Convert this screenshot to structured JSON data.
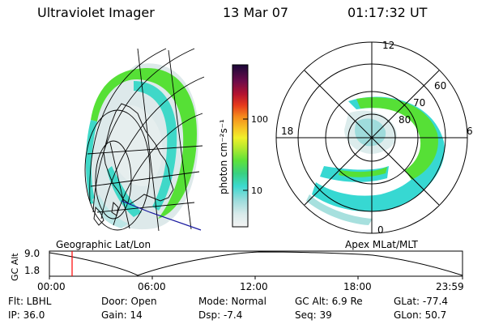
{
  "header": {
    "instrument": "Ultraviolet Imager",
    "date": "13 Mar 07",
    "time": "01:17:32 UT"
  },
  "colorbar": {
    "unit": "photon cm⁻²s⁻¹",
    "ticks": [
      "100",
      "10"
    ]
  },
  "polar": {
    "mlt_labels": [
      "12",
      "18",
      "6",
      "0"
    ],
    "lat_labels": [
      "60",
      "70",
      "80"
    ]
  },
  "panel_titles": {
    "left": "Geographic Lat/Lon",
    "right": "Apex MLat/MLT"
  },
  "timeline": {
    "ylabel": "GC Alt",
    "y_top": "9.0",
    "y_bottom": "1.8",
    "x_ticks": [
      "00:00",
      "06:00",
      "12:00",
      "18:00",
      "23:59"
    ]
  },
  "status": {
    "flt": "Flt: LBHL",
    "ip": "IP: 36.0",
    "door": "Door: Open",
    "gain": "Gain: 14",
    "mode": "Mode: Normal",
    "dsp": "Dsp:    -7.4",
    "gcalt": "GC Alt: 6.9 Re",
    "seq": "Seq: 39",
    "glat": "GLat:  -77.4",
    "glon": "GLon:   50.7"
  },
  "colors": {
    "aurora_green": "#56e036",
    "aurora_cyan": "#37d8d2",
    "aurora_light": "#dcecec",
    "time_marker": "#ff0000",
    "coast": "#1a1aa0"
  }
}
